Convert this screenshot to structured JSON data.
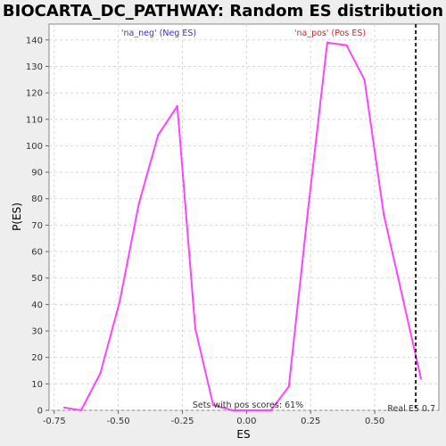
{
  "chart_data": {
    "type": "line",
    "title": "BIOCARTA_DC_PATHWAY: Random ES distribution",
    "xlabel": "ES",
    "ylabel": "P(ES)",
    "xlim": [
      -0.77,
      0.75
    ],
    "ylim": [
      0,
      146
    ],
    "grid": true,
    "xticks": [
      -0.75,
      -0.5,
      -0.25,
      0.0,
      0.25,
      0.5
    ],
    "xtick_labels": [
      "-0.75",
      "-0.50",
      "-0.25",
      "0.00",
      "0.25",
      "0.50"
    ],
    "yticks": [
      0,
      10,
      20,
      30,
      40,
      50,
      60,
      70,
      80,
      90,
      100,
      110,
      120,
      130,
      140
    ],
    "series": [
      {
        "color": "#ff44ff",
        "x": [
          -0.71,
          -0.645,
          -0.57,
          -0.495,
          -0.42,
          -0.345,
          -0.27,
          -0.2,
          -0.13,
          -0.055,
          0.02,
          0.095,
          0.165,
          0.24,
          0.315,
          0.39,
          0.46,
          0.535,
          0.61,
          0.68
        ],
        "y": [
          1,
          0,
          14,
          41,
          78,
          104,
          115,
          31,
          2,
          0,
          0,
          0,
          9,
          76,
          139,
          138,
          125,
          74,
          42,
          12
        ]
      }
    ],
    "annotations": {
      "neg_label": "'na_neg' (Neg ES)",
      "neg_color": "#3333cc",
      "pos_label": "'na_pos' (Pos ES)",
      "pos_color": "#dd2222",
      "sets_text": "Sets with pos scores: 61%",
      "real_es_text": "Real ES 0.7",
      "real_es": 0.66
    }
  }
}
